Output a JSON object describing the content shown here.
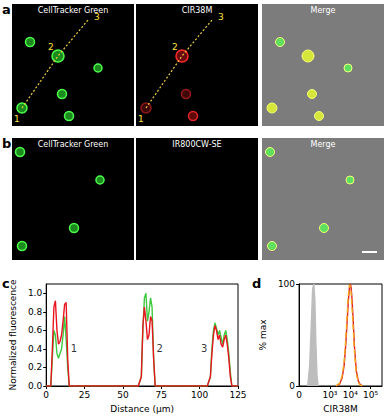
{
  "figure": {
    "panels": [
      {
        "label": "a",
        "channels": [
          "CellTracker Green",
          "CIR38M",
          "Merge"
        ],
        "points": [
          "1",
          "2",
          "3"
        ]
      },
      {
        "label": "b",
        "channels": [
          "CellTracker Green",
          "IR800CW-SE",
          "Merge"
        ]
      }
    ]
  },
  "chart_data": [
    {
      "label": "c",
      "type": "line",
      "xlabel": "Distance (μm)",
      "ylabel": "Normalized fluorescence",
      "x": [
        0,
        3,
        4,
        5,
        6,
        7,
        8,
        9,
        10,
        11,
        12,
        13,
        14,
        15,
        60,
        62,
        63,
        64,
        65,
        66,
        67,
        68,
        69,
        70,
        71,
        105,
        107,
        108,
        109,
        110,
        111,
        112,
        113,
        114,
        115,
        116,
        117,
        118,
        119,
        120,
        121,
        125
      ],
      "series": [
        {
          "color": "#3ec83e",
          "values": [
            0,
            0,
            0.3,
            0.6,
            0.55,
            0.35,
            0.3,
            0.35,
            0.4,
            0.55,
            0.75,
            0.5,
            0.2,
            0,
            0,
            0.1,
            0.6,
            0.95,
            1.0,
            0.7,
            0.8,
            0.95,
            0.85,
            0.3,
            0,
            0,
            0.1,
            0.4,
            0.6,
            0.68,
            0.62,
            0.55,
            0.6,
            0.52,
            0.45,
            0.55,
            0.6,
            0.5,
            0.35,
            0.15,
            0,
            0
          ]
        },
        {
          "color": "#e8141e",
          "values": [
            0,
            0,
            0.4,
            0.85,
            0.92,
            0.6,
            0.45,
            0.48,
            0.55,
            0.7,
            0.88,
            0.9,
            0.3,
            0,
            0,
            0.1,
            0.65,
            0.85,
            0.7,
            0.5,
            0.55,
            0.75,
            0.7,
            0.3,
            0,
            0,
            0.1,
            0.35,
            0.55,
            0.65,
            0.6,
            0.5,
            0.55,
            0.45,
            0.42,
            0.5,
            0.55,
            0.45,
            0.3,
            0.1,
            0,
            0
          ]
        }
      ],
      "xlim": [
        0,
        125
      ],
      "xticks": [
        0,
        25,
        50,
        75,
        100,
        125
      ],
      "ylim": [
        0,
        1.1
      ],
      "yticks": [
        {
          "value": 0,
          "label": "0.0"
        },
        0.2,
        0.4,
        0.6,
        0.8,
        {
          "value": 1,
          "label": "1.0"
        }
      ],
      "annotations": [
        {
          "text": "1",
          "x": 18,
          "y": 0.4
        },
        {
          "text": "2",
          "x": 74,
          "y": 0.4
        },
        {
          "text": "3",
          "x": 103,
          "y": 0.4
        }
      ]
    },
    {
      "label": "d",
      "type": "line",
      "xlabel": "CIR38M",
      "ylabel": "% max",
      "log": "x",
      "xlim": [
        30,
        370000
      ],
      "xticks": [
        {
          "value": 1000,
          "label": "10³"
        },
        {
          "value": 10000,
          "label": "10⁴"
        },
        {
          "value": 100000,
          "label": "10⁵"
        }
      ],
      "ylim": [
        0,
        100
      ],
      "yticks": [
        0,
        100
      ],
      "annotations": [
        {
          "text": "0"
        }
      ],
      "series": [
        {
          "type": "area",
          "color": "#bdbdbd",
          "line_style": "solid",
          "x": [
            80,
            100,
            120,
            140,
            160,
            180,
            200,
            230,
            260
          ],
          "values": [
            0,
            20,
            60,
            95,
            100,
            85,
            45,
            10,
            0
          ]
        },
        {
          "color": "#e02020",
          "line_style": "solid",
          "x": [
            2000,
            3000,
            4000,
            5000,
            6000,
            7000,
            8000,
            9000,
            10000,
            11000,
            12000,
            14000,
            16000,
            20000,
            25000,
            30000,
            40000
          ],
          "values": [
            0,
            2,
            8,
            20,
            40,
            62,
            82,
            95,
            100,
            97,
            88,
            65,
            40,
            15,
            5,
            2,
            0
          ]
        },
        {
          "color": "#f2a81e",
          "line_style": "dashed",
          "x": [
            2000,
            3000,
            4000,
            5000,
            6000,
            7000,
            8000,
            9000,
            10000,
            11000,
            12000,
            14000,
            16000,
            20000,
            25000,
            30000,
            40000
          ],
          "values": [
            0,
            3,
            10,
            24,
            45,
            68,
            88,
            99,
            98,
            92,
            80,
            58,
            35,
            12,
            4,
            1,
            0
          ]
        }
      ]
    }
  ]
}
